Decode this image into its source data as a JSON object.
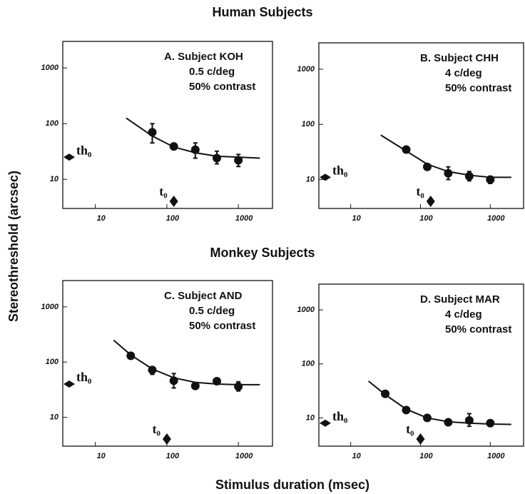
{
  "title_human": "Human Subjects",
  "title_monkey": "Monkey Subjects",
  "ylabel": "Stereothreshold (arcsec)",
  "xlabel": "Stimulus duration (msec)",
  "chart_data": [
    {
      "type": "scatter",
      "log_x": true,
      "log_y": true,
      "annotation": [
        "A.  Subject KOH",
        "0.5 c/deg",
        "50% contrast"
      ],
      "x": [
        62.5,
        125,
        250,
        500,
        1000
      ],
      "values": [
        70,
        39,
        34,
        24,
        22
      ],
      "err_low": [
        45,
        null,
        24,
        19,
        17
      ],
      "err_high": [
        100,
        null,
        45,
        32,
        28
      ],
      "fit_x": [
        27,
        62.5,
        125,
        250,
        500,
        1000,
        2000
      ],
      "fit_y": [
        126,
        60,
        38,
        30,
        26,
        25,
        24
      ],
      "th0": 25,
      "th0_label": "th₀",
      "t0": 125,
      "t0_label": "t₀",
      "xlim": [
        3.5,
        3000
      ],
      "ylim": [
        3,
        3000
      ],
      "xticks": [
        10,
        100,
        1000
      ],
      "yticks": [
        10,
        100,
        1000
      ]
    },
    {
      "type": "scatter",
      "log_x": true,
      "log_y": true,
      "annotation": [
        "B.  Subject CHH",
        "4 c/deg",
        "50% contrast"
      ],
      "x": [
        62.5,
        125,
        250,
        500,
        1000
      ],
      "values": [
        35,
        17,
        13,
        11.5,
        10
      ],
      "err_low": [
        null,
        null,
        10,
        9.5,
        8.5
      ],
      "err_high": [
        null,
        null,
        17,
        14,
        11.5
      ],
      "fit_x": [
        27,
        62.5,
        125,
        250,
        500,
        1000,
        2000
      ],
      "fit_y": [
        64,
        33,
        19,
        14,
        12,
        11,
        11
      ],
      "th0": 11,
      "th0_label": "th₀",
      "t0": 140,
      "t0_label": "t₀",
      "xlim": [
        3.5,
        3000
      ],
      "ylim": [
        3,
        3000
      ],
      "xticks": [
        10,
        100,
        1000
      ],
      "yticks": [
        10,
        100,
        1000
      ]
    },
    {
      "type": "scatter",
      "log_x": true,
      "log_y": true,
      "annotation": [
        "C.  Subject AND",
        "0.5 c/deg",
        "50% contrast"
      ],
      "x": [
        31.25,
        62.5,
        125,
        250,
        500,
        1000
      ],
      "values": [
        130,
        72,
        46,
        37,
        45,
        36
      ],
      "err_low": [
        null,
        60,
        34,
        null,
        null,
        30
      ],
      "err_high": [
        null,
        82,
        62,
        null,
        null,
        44
      ],
      "fit_x": [
        18,
        31.25,
        62.5,
        125,
        250,
        500,
        1000,
        2000
      ],
      "fit_y": [
        250,
        135,
        75,
        52,
        43,
        40,
        39,
        39
      ],
      "th0": 40,
      "th0_label": "th₀",
      "t0": 100,
      "t0_label": "t₀",
      "xlim": [
        3.5,
        3000
      ],
      "ylim": [
        3,
        3000
      ],
      "xticks": [
        10,
        100,
        1000
      ],
      "yticks": [
        10,
        100,
        1000
      ]
    },
    {
      "type": "scatter",
      "log_x": true,
      "log_y": true,
      "annotation": [
        "D.  Subject MAR",
        "4 c/deg",
        "50% contrast"
      ],
      "x": [
        31.25,
        62.5,
        125,
        250,
        500,
        1000
      ],
      "values": [
        28,
        14,
        10,
        8.3,
        9,
        8
      ],
      "err_low": [
        null,
        null,
        null,
        null,
        7,
        null
      ],
      "err_high": [
        null,
        null,
        null,
        null,
        12,
        null
      ],
      "fit_x": [
        18,
        31.25,
        62.5,
        125,
        250,
        500,
        1000,
        2000
      ],
      "fit_y": [
        48,
        27,
        14.5,
        10,
        8.5,
        8,
        7.7,
        7.6
      ],
      "th0": 8,
      "th0_label": "th₀",
      "t0": 100,
      "t0_label": "t₀",
      "xlim": [
        3.5,
        3000
      ],
      "ylim": [
        3,
        3000
      ],
      "xticks": [
        10,
        100,
        1000
      ],
      "yticks": [
        10,
        100,
        1000
      ]
    }
  ]
}
